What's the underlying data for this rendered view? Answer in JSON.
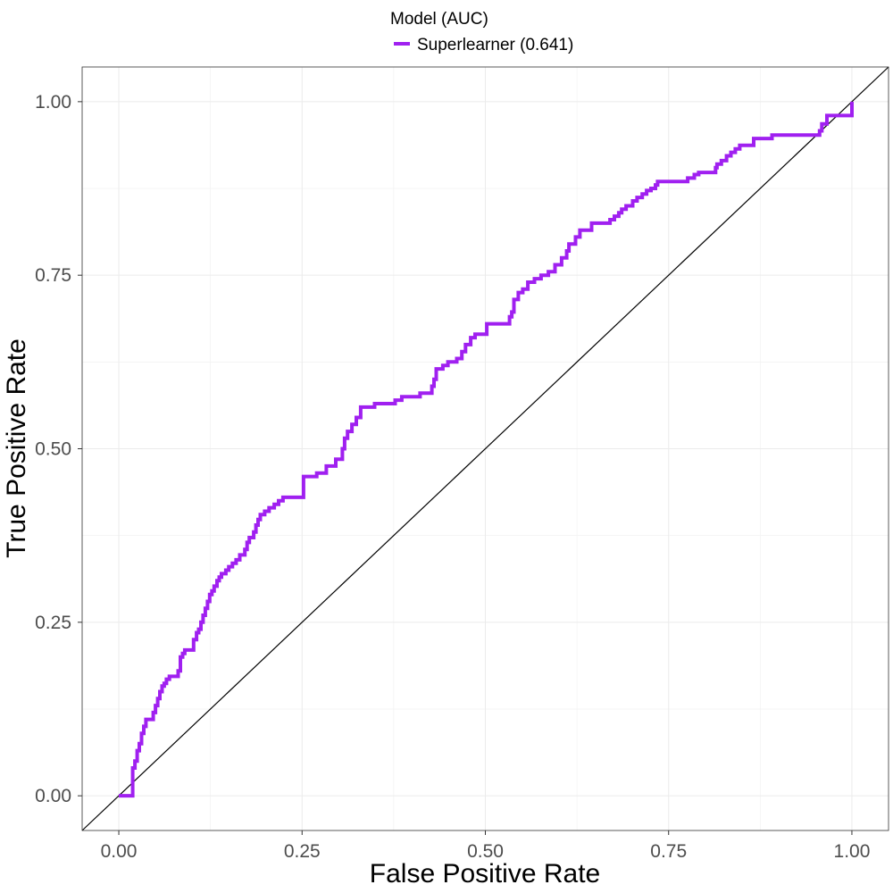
{
  "chart_data": {
    "type": "line",
    "title": "",
    "xlabel": "False Positive Rate",
    "ylabel": "True Positive Rate",
    "xlim": [
      -0.05,
      1.05
    ],
    "ylim": [
      -0.05,
      1.05
    ],
    "x_ticks": [
      0,
      0.25,
      0.5,
      0.75,
      1
    ],
    "x_tick_labels": [
      "0.00",
      "0.25",
      "0.50",
      "0.75",
      "1.00"
    ],
    "y_ticks": [
      0,
      0.25,
      0.5,
      0.75,
      1
    ],
    "y_tick_labels": [
      "0.00",
      "0.25",
      "0.50",
      "0.75",
      "1.00"
    ],
    "grid": true,
    "legend": {
      "title": "Model (AUC)",
      "position": "top",
      "entries": [
        {
          "label": "Superlearner (0.641)",
          "color": "#a020f0"
        }
      ]
    },
    "reference_line": {
      "name": "chance-diagonal",
      "x": [
        -0.05,
        1.05
      ],
      "y": [
        -0.05,
        1.05
      ],
      "color": "#000000"
    },
    "series": [
      {
        "name": "Superlearner (0.641)",
        "color": "#a020f0",
        "step": true,
        "x": [
          0.0,
          0.019,
          0.019,
          0.022,
          0.025,
          0.028,
          0.031,
          0.034,
          0.037,
          0.047,
          0.05,
          0.053,
          0.056,
          0.059,
          0.062,
          0.065,
          0.069,
          0.081,
          0.084,
          0.087,
          0.09,
          0.102,
          0.106,
          0.109,
          0.112,
          0.115,
          0.118,
          0.121,
          0.124,
          0.127,
          0.13,
          0.134,
          0.137,
          0.14,
          0.146,
          0.15,
          0.155,
          0.16,
          0.165,
          0.172,
          0.175,
          0.178,
          0.184,
          0.187,
          0.19,
          0.193,
          0.199,
          0.205,
          0.212,
          0.218,
          0.224,
          0.252,
          0.27,
          0.283,
          0.296,
          0.305,
          0.308,
          0.312,
          0.318,
          0.324,
          0.33,
          0.349,
          0.377,
          0.386,
          0.411,
          0.427,
          0.43,
          0.433,
          0.442,
          0.449,
          0.461,
          0.468,
          0.473,
          0.48,
          0.486,
          0.502,
          0.533,
          0.536,
          0.539,
          0.545,
          0.551,
          0.558,
          0.567,
          0.576,
          0.586,
          0.595,
          0.604,
          0.611,
          0.614,
          0.623,
          0.629,
          0.645,
          0.67,
          0.676,
          0.682,
          0.686,
          0.692,
          0.701,
          0.707,
          0.714,
          0.72,
          0.726,
          0.732,
          0.735,
          0.776,
          0.785,
          0.791,
          0.814,
          0.816,
          0.822,
          0.829,
          0.835,
          0.841,
          0.847,
          0.866,
          0.891,
          0.956,
          0.959,
          0.966,
          1.0
        ],
        "y": [
          0.0,
          0.0,
          0.04,
          0.05,
          0.065,
          0.075,
          0.09,
          0.1,
          0.11,
          0.12,
          0.13,
          0.14,
          0.15,
          0.158,
          0.162,
          0.168,
          0.172,
          0.18,
          0.2,
          0.205,
          0.21,
          0.225,
          0.235,
          0.24,
          0.25,
          0.26,
          0.27,
          0.28,
          0.29,
          0.295,
          0.302,
          0.31,
          0.315,
          0.32,
          0.325,
          0.33,
          0.335,
          0.34,
          0.347,
          0.355,
          0.365,
          0.372,
          0.38,
          0.39,
          0.398,
          0.405,
          0.41,
          0.415,
          0.42,
          0.425,
          0.43,
          0.46,
          0.465,
          0.475,
          0.485,
          0.5,
          0.515,
          0.525,
          0.535,
          0.545,
          0.56,
          0.565,
          0.57,
          0.575,
          0.58,
          0.59,
          0.6,
          0.615,
          0.62,
          0.625,
          0.63,
          0.64,
          0.65,
          0.66,
          0.665,
          0.68,
          0.69,
          0.697,
          0.715,
          0.725,
          0.73,
          0.74,
          0.745,
          0.75,
          0.755,
          0.765,
          0.775,
          0.785,
          0.795,
          0.805,
          0.815,
          0.825,
          0.83,
          0.835,
          0.84,
          0.845,
          0.85,
          0.857,
          0.862,
          0.867,
          0.872,
          0.875,
          0.88,
          0.885,
          0.89,
          0.895,
          0.898,
          0.905,
          0.91,
          0.915,
          0.922,
          0.927,
          0.932,
          0.937,
          0.947,
          0.952,
          0.958,
          0.968,
          0.98,
          1.0
        ]
      }
    ]
  }
}
